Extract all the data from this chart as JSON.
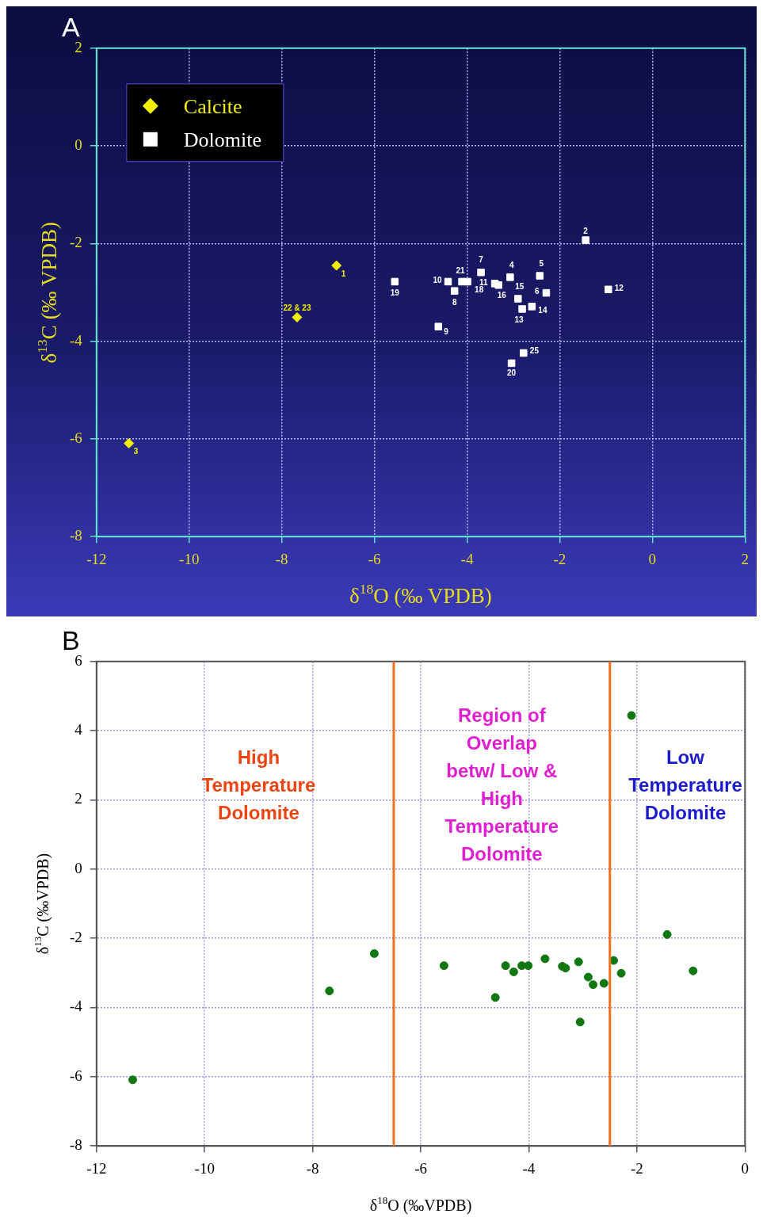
{
  "chart_data": [
    {
      "type": "scatter",
      "title": "A",
      "xlabel": "δ$^{18}$O (‰ VPDB)",
      "ylabel": "δ$^{13}$C (‰ VPDB)",
      "xlim": [
        -12,
        2
      ],
      "ylim": [
        -8,
        2
      ],
      "xticks": [
        -12,
        -10,
        -8,
        -6,
        -4,
        -2,
        0,
        2
      ],
      "yticks": [
        -8,
        -6,
        -4,
        -2,
        0,
        2
      ],
      "grid": true,
      "legend": "top left",
      "series": [
        {
          "name": "Calcite",
          "color": "#f2f000",
          "marker": "diamond",
          "x": [
            -6.82,
            -7.67,
            -11.3
          ],
          "values": [
            -2.45,
            -3.51,
            -6.09
          ]
        },
        {
          "name": "Dolomite",
          "color": "#ffffff",
          "marker": "square",
          "x": [
            -1.44,
            -5.56,
            -4.41,
            -4.27,
            -4.11,
            -3.99,
            -3.7,
            -3.4,
            -3.32,
            -3.07,
            -2.43,
            -2.29,
            -2.9,
            -2.81,
            -2.6,
            -0.95,
            -4.62,
            -2.78,
            -3.04
          ],
          "values": [
            -1.93,
            -2.78,
            -2.78,
            -2.97,
            -2.78,
            -2.78,
            -2.59,
            -2.82,
            -2.85,
            -2.69,
            -2.66,
            -3.01,
            -3.13,
            -3.34,
            -3.29,
            -2.94,
            -3.7,
            -4.24,
            -4.45
          ]
        }
      ],
      "annotations": [
        {
          "text": "1",
          "x": -6.82,
          "y": -2.45
        },
        {
          "text": "22 & 23",
          "x": -7.67,
          "y": -3.51
        },
        {
          "text": "3",
          "x": -11.3,
          "y": -6.09
        },
        {
          "text": "2",
          "x": -1.44,
          "y": -1.93
        },
        {
          "text": "19",
          "x": -5.56,
          "y": -2.78
        },
        {
          "text": "10",
          "x": -4.41,
          "y": -2.78
        },
        {
          "text": "8",
          "x": -4.27,
          "y": -2.97
        },
        {
          "text": "21",
          "x": -4.11,
          "y": -2.78
        },
        {
          "text": "18",
          "x": -3.99,
          "y": -2.78
        },
        {
          "text": "7",
          "x": -3.7,
          "y": -2.59
        },
        {
          "text": "11",
          "x": -3.4,
          "y": -2.82
        },
        {
          "text": "16",
          "x": -3.32,
          "y": -2.85
        },
        {
          "text": "4",
          "x": -3.07,
          "y": -2.69
        },
        {
          "text": "5",
          "x": -2.43,
          "y": -2.66
        },
        {
          "text": "6",
          "x": -2.29,
          "y": -3.01
        },
        {
          "text": "15",
          "x": -2.9,
          "y": -3.13
        },
        {
          "text": "13",
          "x": -2.81,
          "y": -3.34
        },
        {
          "text": "14",
          "x": -2.6,
          "y": -3.29
        },
        {
          "text": "12",
          "x": -0.95,
          "y": -2.94
        },
        {
          "text": "9",
          "x": -4.62,
          "y": -3.7
        },
        {
          "text": "25",
          "x": -2.78,
          "y": -4.24
        },
        {
          "text": "20",
          "x": -3.04,
          "y": -4.45
        }
      ]
    },
    {
      "type": "scatter",
      "title": "B",
      "xlabel": "δ$^{18}$O (‰VPDB)",
      "ylabel": "δ$^{13}$C (‰VPDB)",
      "xlim": [
        -12,
        0
      ],
      "ylim": [
        -8,
        6
      ],
      "xticks": [
        -12,
        -10,
        -8,
        -6,
        -4,
        -2,
        0
      ],
      "yticks": [
        -8,
        -6,
        -4,
        -2,
        0,
        2,
        4,
        6
      ],
      "grid": true,
      "marker": "circle",
      "series": [
        {
          "color": "#117711",
          "x": [
            -6.86,
            -7.69,
            -11.33,
            -5.57,
            -4.62,
            -4.43,
            -4.28,
            -4.13,
            -4.01,
            -3.7,
            -3.38,
            -3.32,
            -3.08,
            -3.05,
            -2.9,
            -2.81,
            -2.61,
            -2.43,
            -2.29,
            -2.1,
            -1.44,
            -0.96
          ],
          "values": [
            -2.44,
            -3.52,
            -6.09,
            -2.79,
            -3.71,
            -2.79,
            -2.97,
            -2.79,
            -2.79,
            -2.59,
            -2.81,
            -2.86,
            -2.68,
            -4.42,
            -3.12,
            -3.34,
            -3.3,
            -2.64,
            -3.01,
            4.44,
            -1.89,
            -2.94
          ]
        }
      ],
      "ref_lines": [
        {
          "axis": "x",
          "value": -6.5,
          "color": "#f07020"
        },
        {
          "axis": "x",
          "value": -2.5,
          "color": "#f07020"
        }
      ],
      "annotations": [
        "High\nTemperature\nDolomite",
        "Region of\nOverlap\nbetw/ Low &\nHigh\nTemperature\nDolomite",
        "Low\nTemperature\nDolomite"
      ]
    }
  ]
}
